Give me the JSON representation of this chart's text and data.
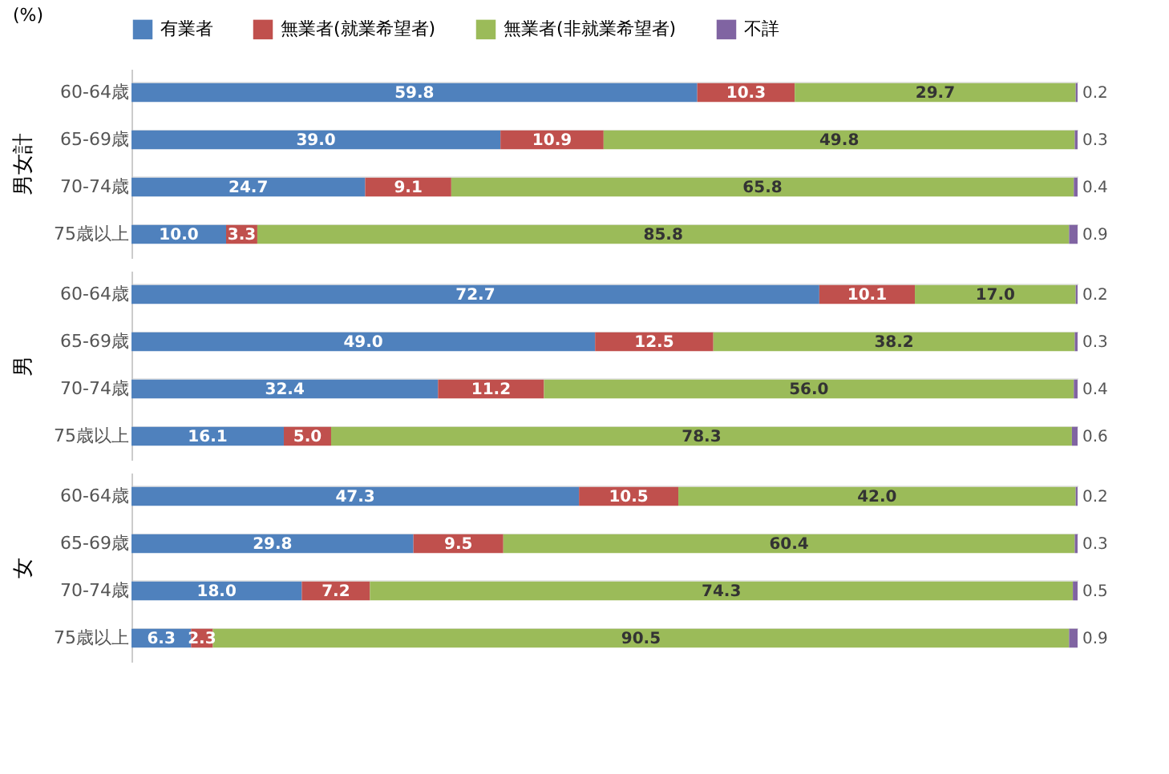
{
  "chart_data": [
    {
      "type": "bar",
      "orientation": "horizontal",
      "stacked": true,
      "tick_labels": "y",
      "legend": "top",
      "ylabel": "男女計",
      "annotations": [
        "(%)"
      ],
      "categories": [
        "60-64歳",
        "65-69歳",
        "70-74歳",
        "75歳以上"
      ],
      "series": [
        {
          "name": "有業者",
          "color": "#4f81bd",
          "values": [
            59.8,
            39.0,
            24.7,
            10.0
          ],
          "value_labels": [
            "59.8",
            "39.0",
            "24.7",
            "10.0"
          ]
        },
        {
          "name": "無業者(就業希望者)",
          "color": "#c0504d",
          "values": [
            10.3,
            10.9,
            9.1,
            3.3
          ],
          "value_labels": [
            "10.3",
            "10.9",
            "9.1",
            "3.3"
          ]
        },
        {
          "name": "無業者(非就業希望者)",
          "color": "#9bbb59",
          "values": [
            29.7,
            49.8,
            65.8,
            85.8
          ],
          "value_labels": [
            "29.7",
            "49.8",
            "65.8",
            "85.8"
          ]
        },
        {
          "name": "不詳",
          "color": "#8064a2",
          "values": [
            0.2,
            0.3,
            0.4,
            0.9
          ],
          "value_labels": [
            "0.2",
            "0.3",
            "0.4",
            "0.9"
          ]
        }
      ]
    },
    {
      "type": "bar",
      "orientation": "horizontal",
      "stacked": true,
      "tick_labels": "y",
      "ylabel": "男",
      "categories": [
        "60-64歳",
        "65-69歳",
        "70-74歳",
        "75歳以上"
      ],
      "series": [
        {
          "color": "#4f81bd",
          "values": [
            72.7,
            49.0,
            32.4,
            16.1
          ],
          "value_labels": [
            "72.7",
            "49.0",
            "32.4",
            "16.1"
          ]
        },
        {
          "color": "#c0504d",
          "values": [
            10.1,
            12.5,
            11.2,
            5.0
          ],
          "value_labels": [
            "10.1",
            "12.5",
            "11.2",
            "5.0"
          ]
        },
        {
          "color": "#9bbb59",
          "values": [
            17.0,
            38.2,
            56.0,
            78.3
          ],
          "value_labels": [
            "17.0",
            "38.2",
            "56.0",
            "78.3"
          ]
        },
        {
          "color": "#8064a2",
          "values": [
            0.2,
            0.3,
            0.4,
            0.6
          ],
          "value_labels": [
            "0.2",
            "0.3",
            "0.4",
            "0.6"
          ]
        }
      ]
    },
    {
      "type": "bar",
      "orientation": "horizontal",
      "stacked": true,
      "tick_labels": "y",
      "ylabel": "女",
      "categories": [
        "60-64歳",
        "65-69歳",
        "70-74歳",
        "75歳以上"
      ],
      "series": [
        {
          "color": "#4f81bd",
          "values": [
            47.3,
            29.8,
            18.0,
            6.3
          ],
          "value_labels": [
            "47.3",
            "29.8",
            "18.0",
            "6.3"
          ]
        },
        {
          "color": "#c0504d",
          "values": [
            10.5,
            9.5,
            7.2,
            2.3
          ],
          "value_labels": [
            "10.5",
            "9.5",
            "7.2",
            "2.3"
          ]
        },
        {
          "color": "#9bbb59",
          "values": [
            42.0,
            60.4,
            74.3,
            90.5
          ],
          "value_labels": [
            "42.0",
            "60.4",
            "74.3",
            "90.5"
          ]
        },
        {
          "color": "#8064a2",
          "values": [
            0.2,
            0.3,
            0.5,
            0.9
          ],
          "value_labels": [
            "0.2",
            "0.3",
            "0.5",
            "0.9"
          ]
        }
      ]
    }
  ]
}
